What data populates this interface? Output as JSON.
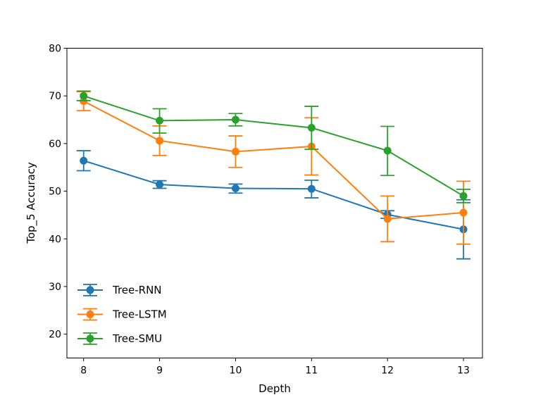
{
  "chart_data": {
    "type": "line",
    "title": "",
    "xlabel": "Depth",
    "ylabel": "Top_5 Accuracy",
    "x": [
      8,
      9,
      10,
      11,
      12,
      13
    ],
    "xlim": [
      7.78,
      13.25
    ],
    "ylim": [
      15,
      80
    ],
    "yticks": [
      20,
      30,
      40,
      50,
      60,
      70,
      80
    ],
    "xticks": [
      8,
      9,
      10,
      11,
      12,
      13
    ],
    "grid": false,
    "legend_position": "bottom-left",
    "series": [
      {
        "name": "Tree-RNN",
        "color": "#1f77b4",
        "values": [
          56.4,
          51.4,
          50.6,
          50.5,
          45.1,
          42.0
        ],
        "err_low": [
          2.1,
          0.8,
          1.0,
          1.9,
          0.8,
          6.2
        ],
        "err_high": [
          2.1,
          0.8,
          0.9,
          1.8,
          0.8,
          6.2
        ]
      },
      {
        "name": "Tree-LSTM",
        "color": "#ff7f0e",
        "values": [
          68.9,
          60.6,
          58.3,
          59.4,
          44.2,
          45.5
        ],
        "err_low": [
          2.0,
          3.1,
          3.3,
          6.0,
          4.8,
          6.6
        ],
        "err_high": [
          2.0,
          3.1,
          3.3,
          6.0,
          4.8,
          6.6
        ]
      },
      {
        "name": "Tree-SMU",
        "color": "#2ca02c",
        "values": [
          70.0,
          64.8,
          65.0,
          63.3,
          58.5,
          49.0
        ],
        "err_low": [
          1.0,
          2.6,
          1.3,
          4.5,
          5.2,
          1.4
        ],
        "err_high": [
          1.0,
          2.5,
          1.3,
          4.5,
          5.1,
          1.4
        ]
      }
    ]
  }
}
